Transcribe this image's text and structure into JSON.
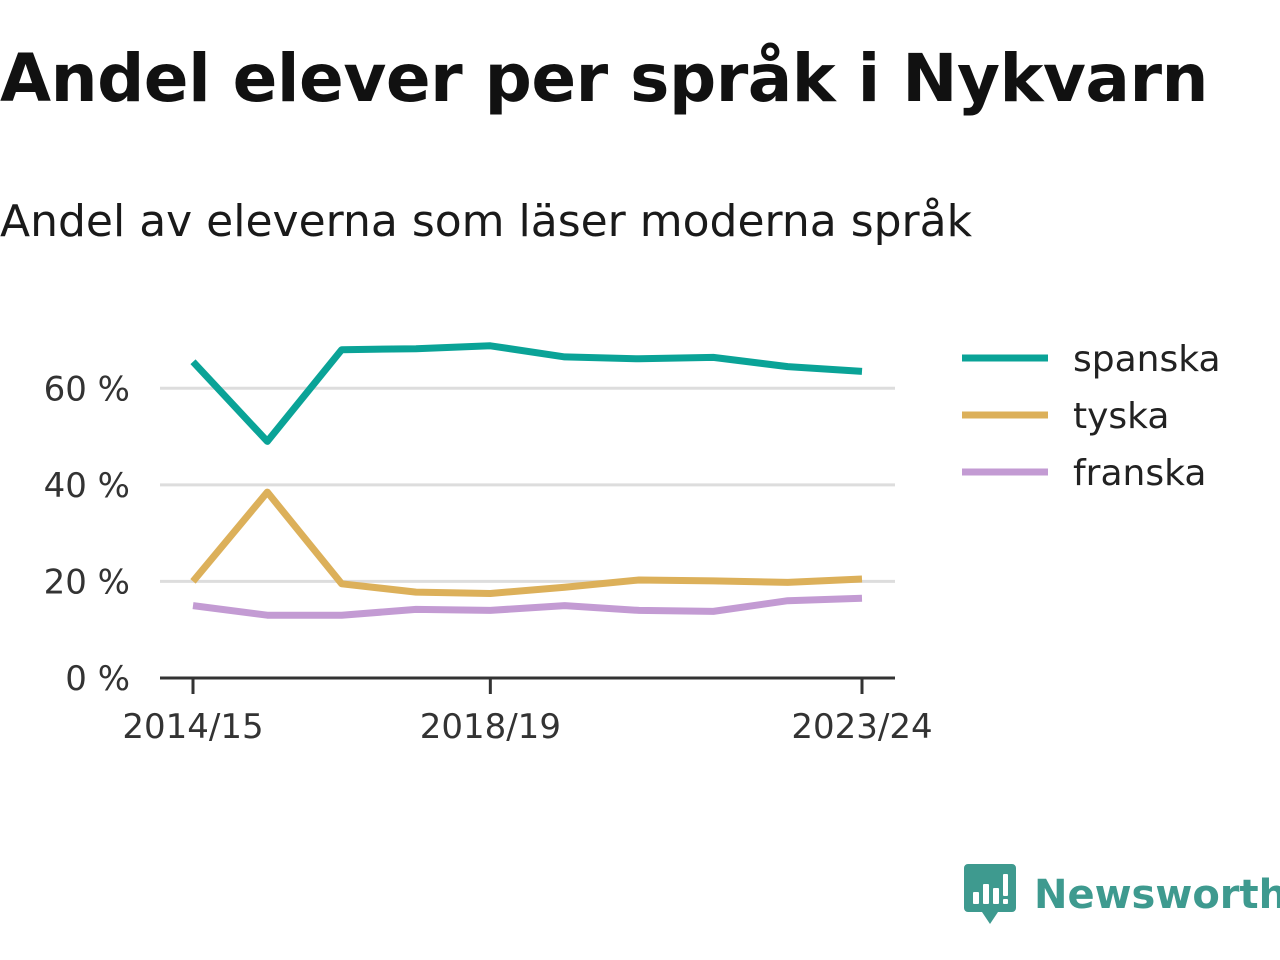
{
  "title": "Andel elever per språk i Nykvarn",
  "subtitle": "Andel av eleverna som läser moderna språk",
  "brand": {
    "name": "Newsworthy",
    "color": "#3e9a8f"
  },
  "chart_data": {
    "type": "line",
    "x": [
      "2014/15",
      "2015/16",
      "2016/17",
      "2017/18",
      "2018/19",
      "2019/20",
      "2020/21",
      "2021/22",
      "2022/23",
      "2023/24"
    ],
    "x_tick_labels": [
      "2014/15",
      "2018/19",
      "2023/24"
    ],
    "y_ticks": [
      0,
      20,
      40,
      60
    ],
    "y_tick_labels": [
      "0 %",
      "20 %",
      "40 %",
      "60 %"
    ],
    "ylim": [
      0,
      70
    ],
    "grid": true,
    "legend": "right",
    "series": [
      {
        "name": "spanska",
        "color": "#0aa397",
        "values": [
          65.5,
          49,
          68,
          68.2,
          68.8,
          66.5,
          66.1,
          66.4,
          64.5,
          63.5
        ]
      },
      {
        "name": "tyska",
        "color": "#dcb05a",
        "values": [
          20,
          38.5,
          19.5,
          17.8,
          17.5,
          18.8,
          20.3,
          20.1,
          19.8,
          20.5
        ]
      },
      {
        "name": "franska",
        "color": "#c39bd3",
        "values": [
          15,
          13,
          13,
          14.2,
          14,
          15,
          14,
          13.8,
          16,
          16.5
        ]
      }
    ]
  }
}
